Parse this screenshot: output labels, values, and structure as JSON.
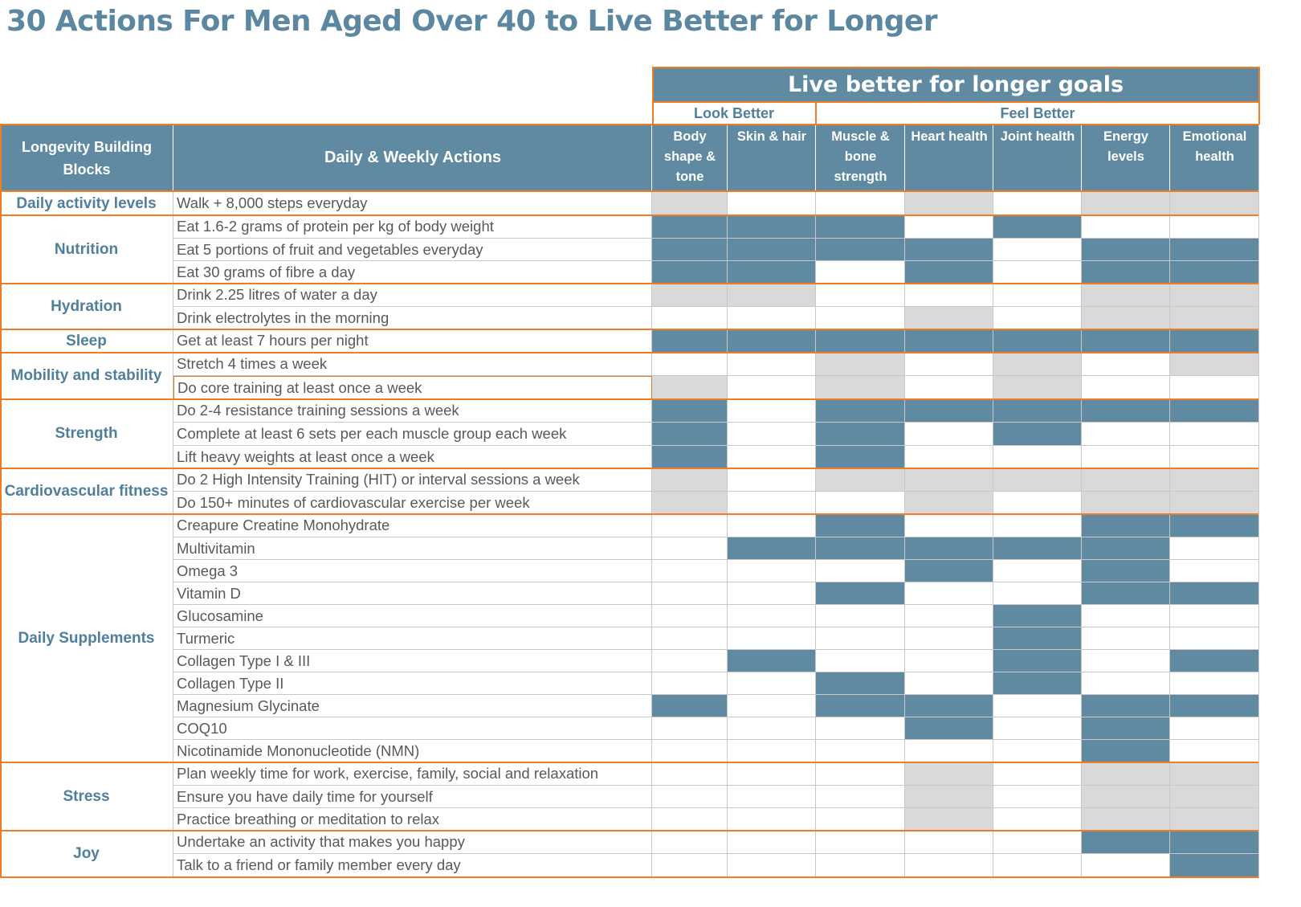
{
  "title": "30 Actions For Men Aged Over 40 to Live Better for Longer",
  "goals_header": "Live better for longer goals",
  "goal_groups": [
    {
      "label": "Look Better",
      "span": 2
    },
    {
      "label": "Feel Better",
      "span": 5
    }
  ],
  "col_headers": {
    "blocks": "Longevity Building Blocks",
    "actions": "Daily & Weekly Actions"
  },
  "goals": [
    "Body shape & tone",
    "Skin & hair",
    "Muscle & bone strength",
    "Heart health",
    "Joint health",
    "Energy levels",
    "Emotional health"
  ],
  "colors": {
    "accent": "#5f8aa1",
    "title": "#5b87a0",
    "divider": "#f07d23",
    "shade_light": "#d9d9d9",
    "text": "#595959"
  },
  "cell_legend": {
    "2": "dark fill",
    "1": "light grey fill",
    "0": "empty"
  },
  "blocks": [
    {
      "name": "Daily activity levels",
      "rows": [
        {
          "action": "Walk + 8,000 steps everyday",
          "cells": [
            1,
            0,
            0,
            1,
            0,
            1,
            1
          ]
        }
      ]
    },
    {
      "name": "Nutrition",
      "rows": [
        {
          "action": "Eat 1.6-2 grams of protein per kg of body weight",
          "cells": [
            2,
            2,
            2,
            0,
            2,
            0,
            0
          ]
        },
        {
          "action": "Eat 5 portions of fruit and vegetables everyday",
          "cells": [
            2,
            2,
            2,
            2,
            0,
            2,
            2
          ]
        },
        {
          "action": "Eat 30 grams of fibre a day",
          "cells": [
            2,
            2,
            0,
            2,
            0,
            2,
            2
          ]
        }
      ]
    },
    {
      "name": "Hydration",
      "rows": [
        {
          "action": "Drink 2.25 litres of water a day",
          "cells": [
            1,
            1,
            0,
            0,
            0,
            1,
            1
          ]
        },
        {
          "action": "Drink electrolytes in the morning",
          "cells": [
            0,
            0,
            0,
            1,
            0,
            1,
            1
          ]
        }
      ]
    },
    {
      "name": "Sleep",
      "rows": [
        {
          "action": "Get at least 7  hours per night",
          "cells": [
            2,
            2,
            2,
            2,
            2,
            2,
            2
          ]
        }
      ]
    },
    {
      "name": "Mobility and stability",
      "rows": [
        {
          "action": "Stretch 4 times a week",
          "cells": [
            0,
            0,
            1,
            0,
            1,
            0,
            1
          ]
        },
        {
          "action": "Do core training at least once a week",
          "cells": [
            1,
            0,
            1,
            0,
            1,
            0,
            0
          ],
          "selected": true
        }
      ]
    },
    {
      "name": "Strength",
      "rows": [
        {
          "action": "Do 2-4 resistance training sessions a week",
          "cells": [
            2,
            0,
            2,
            2,
            2,
            2,
            2
          ]
        },
        {
          "action": "Complete at least 6 sets per each muscle group each week",
          "cells": [
            2,
            0,
            2,
            0,
            2,
            0,
            0
          ]
        },
        {
          "action": "Lift heavy weights at least once a week",
          "cells": [
            2,
            0,
            2,
            0,
            0,
            0,
            0
          ]
        }
      ]
    },
    {
      "name": "Cardiovascular fitness",
      "rows": [
        {
          "action": "Do 2 High Intensity Training (HIT)  or interval sessions a week",
          "cells": [
            1,
            0,
            1,
            1,
            1,
            1,
            1
          ]
        },
        {
          "action": "Do 150+ minutes of cardiovascular exercise per week",
          "cells": [
            1,
            0,
            0,
            1,
            0,
            1,
            1
          ]
        }
      ]
    },
    {
      "name": "Daily Supplements",
      "rows": [
        {
          "action": "Creapure Creatine Monohydrate",
          "cells": [
            0,
            0,
            2,
            0,
            0,
            2,
            2
          ]
        },
        {
          "action": "Multivitamin",
          "cells": [
            0,
            2,
            2,
            2,
            2,
            2,
            0
          ]
        },
        {
          "action": "Omega 3",
          "cells": [
            0,
            0,
            0,
            2,
            0,
            2,
            0
          ]
        },
        {
          "action": "Vitamin D",
          "cells": [
            0,
            0,
            2,
            0,
            0,
            2,
            2
          ]
        },
        {
          "action": "Glucosamine",
          "cells": [
            0,
            0,
            0,
            0,
            2,
            0,
            0
          ]
        },
        {
          "action": "Turmeric",
          "cells": [
            0,
            0,
            0,
            0,
            2,
            0,
            0
          ]
        },
        {
          "action": "Collagen Type I & III",
          "cells": [
            0,
            2,
            0,
            0,
            2,
            0,
            2
          ]
        },
        {
          "action": "Collagen Type II",
          "cells": [
            0,
            0,
            2,
            0,
            2,
            0,
            0
          ]
        },
        {
          "action": "Magnesium Glycinate",
          "cells": [
            2,
            0,
            2,
            2,
            0,
            2,
            2
          ]
        },
        {
          "action": "COQ10",
          "cells": [
            0,
            0,
            0,
            2,
            0,
            2,
            0
          ]
        },
        {
          "action": "Nicotinamide Mononucleotide (NMN)",
          "cells": [
            0,
            0,
            0,
            0,
            0,
            2,
            0
          ]
        }
      ]
    },
    {
      "name": "Stress",
      "rows": [
        {
          "action": "Plan weekly time for work, exercise, family, social and relaxation",
          "cells": [
            0,
            0,
            0,
            1,
            0,
            1,
            1
          ]
        },
        {
          "action": "Ensure you have daily time for yourself",
          "cells": [
            0,
            0,
            0,
            1,
            0,
            1,
            1
          ]
        },
        {
          "action": "Practice breathing or meditation to relax",
          "cells": [
            0,
            0,
            0,
            1,
            0,
            1,
            1
          ]
        }
      ]
    },
    {
      "name": "Joy",
      "rows": [
        {
          "action": "Undertake an activity that makes you happy",
          "cells": [
            0,
            0,
            0,
            0,
            0,
            2,
            2
          ]
        },
        {
          "action": "Talk to a friend or family member every day",
          "cells": [
            0,
            0,
            0,
            0,
            0,
            0,
            2
          ]
        }
      ]
    }
  ]
}
